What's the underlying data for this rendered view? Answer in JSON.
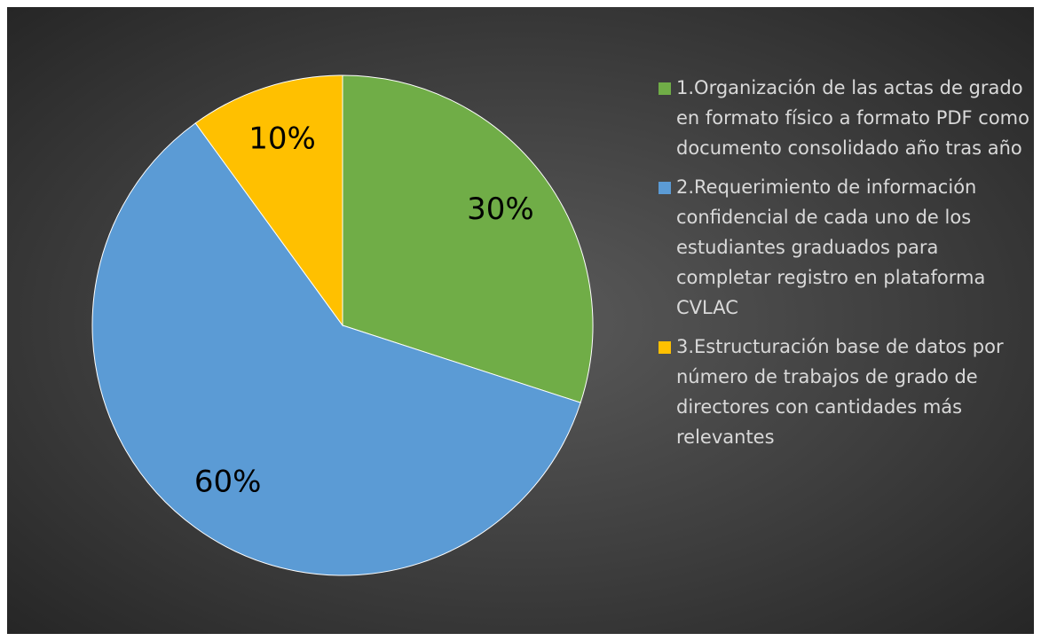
{
  "chart_data": {
    "type": "pie",
    "categories": [
      "1.Organización de las actas de grado en formato físico a formato PDF como documento consolidado año tras año",
      "2.Requerimiento de información confidencial de cada uno de los estudiantes graduados para completar registro en plataforma CVLAC",
      "3.Estructuración base de datos por número de trabajos de grado de directores con cantidades más relevantes"
    ],
    "values": [
      30,
      60,
      10
    ],
    "value_labels": [
      "30%",
      "60%",
      "10%"
    ],
    "colors": [
      "#70ad47",
      "#5b9bd5",
      "#ffc000"
    ],
    "legend": "right"
  }
}
